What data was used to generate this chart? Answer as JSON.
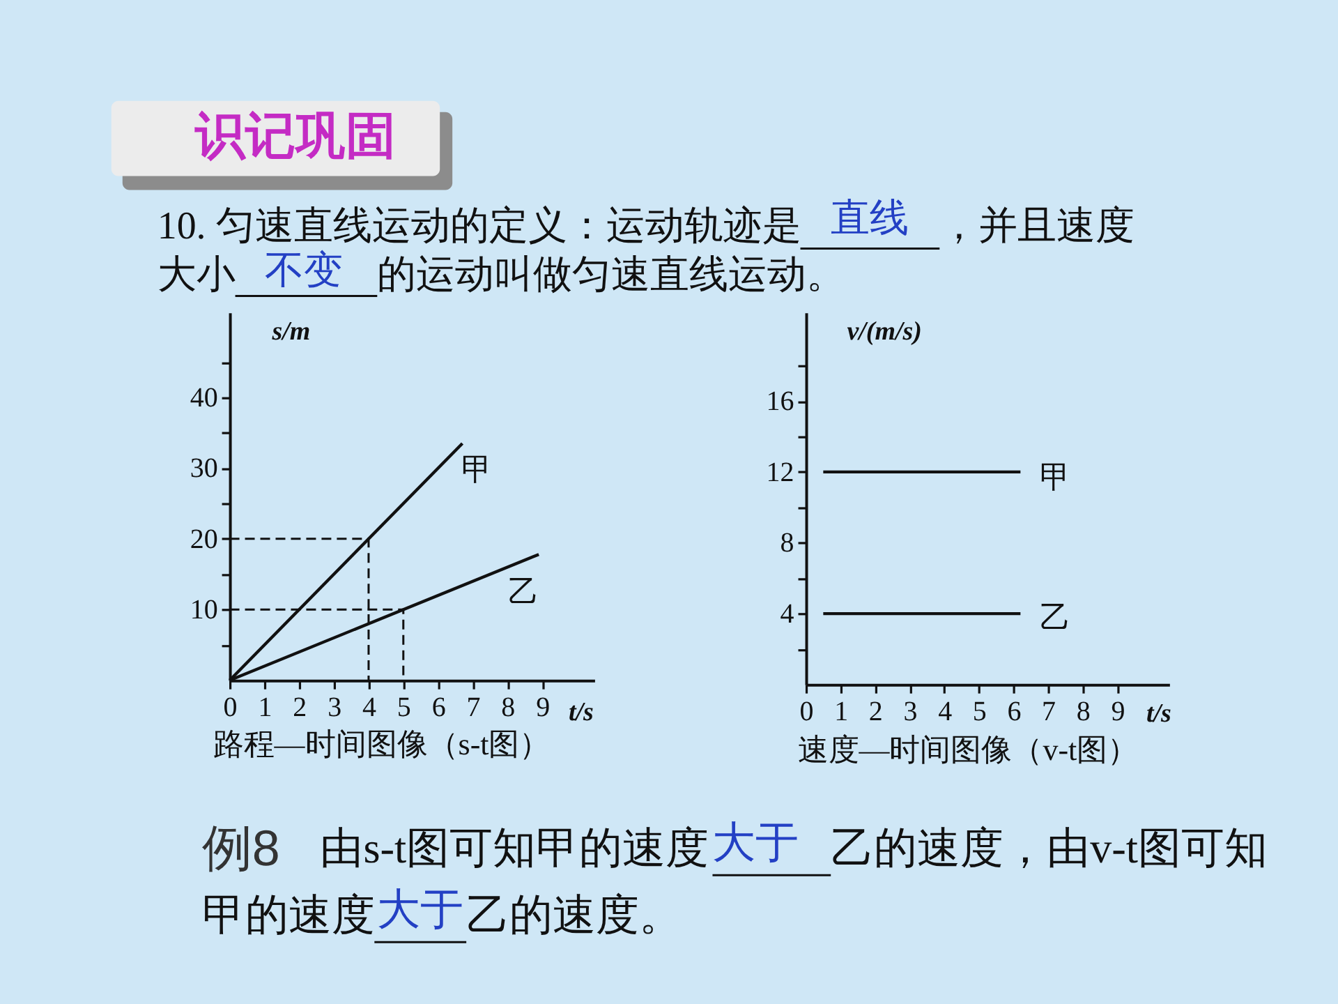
{
  "chart_data": [
    {
      "type": "other",
      "title": "识记巩固",
      "annotations": [
        "10. 匀速直线运动的定义：运动轨迹是",
        "直线",
        "，并且速度",
        "大小",
        "不变",
        "的运动叫做匀速直线运动。"
      ]
    },
    {
      "type": "line",
      "title": "路程—时间图像（s-t图）",
      "xlabel": "t/s",
      "ylabel": "s/m",
      "xlim": [
        0,
        10.5
      ],
      "ylim": [
        0,
        52
      ],
      "xticks": [
        0,
        1,
        2,
        3,
        4,
        5,
        6,
        7,
        8,
        9
      ],
      "yticks": [
        {
          "value": 5,
          "label": null
        },
        10,
        {
          "value": 15,
          "label": null
        },
        20,
        {
          "value": 25,
          "label": null
        },
        30,
        {
          "value": 35,
          "label": null
        },
        40,
        {
          "value": 45,
          "label": null
        }
      ],
      "line_style": "solid",
      "series": [
        {
          "name": "甲",
          "color": "#111111",
          "x": [
            0,
            6.7
          ],
          "values": [
            0,
            33.5
          ]
        },
        {
          "name": "乙",
          "color": "#111111",
          "x": [
            0,
            8.9
          ],
          "values": [
            0,
            17.8
          ]
        },
        {
          "color": "#111111",
          "x": [
            0,
            4,
            4
          ],
          "values": [
            20,
            20,
            0
          ],
          "line_style": "dashed"
        },
        {
          "color": "#111111",
          "x": [
            0,
            5,
            5
          ],
          "values": [
            10,
            10,
            0
          ],
          "line_style": "dashed"
        }
      ]
    },
    {
      "type": "line",
      "title": "速度—时间图像（v-t图）",
      "xlabel": "t/s",
      "ylabel": "v/(m/s)",
      "xlim": [
        0,
        10.5
      ],
      "ylim": [
        0,
        21
      ],
      "xticks": [
        0,
        1,
        2,
        3,
        4,
        5,
        6,
        7,
        8,
        9
      ],
      "yticks": [
        {
          "value": 2,
          "label": null
        },
        4,
        {
          "value": 6,
          "label": null
        },
        8,
        {
          "value": 10,
          "label": null
        },
        12,
        {
          "value": 14,
          "label": null
        },
        16,
        {
          "value": 18,
          "label": null
        }
      ],
      "line_style": "solid",
      "series": [
        {
          "name": "甲",
          "color": "#111111",
          "x": [
            0.5,
            6.2
          ],
          "values": [
            12,
            12
          ]
        },
        {
          "name": "乙",
          "color": "#111111",
          "x": [
            0.5,
            6.2
          ],
          "values": [
            4,
            4
          ]
        }
      ]
    },
    {
      "type": "other",
      "annotations": [
        "例8",
        "由s-t图可知甲的速度",
        "大于",
        "乙的速度，由v-t图可知",
        "甲的速度",
        "大于",
        "乙的速度。"
      ]
    }
  ]
}
